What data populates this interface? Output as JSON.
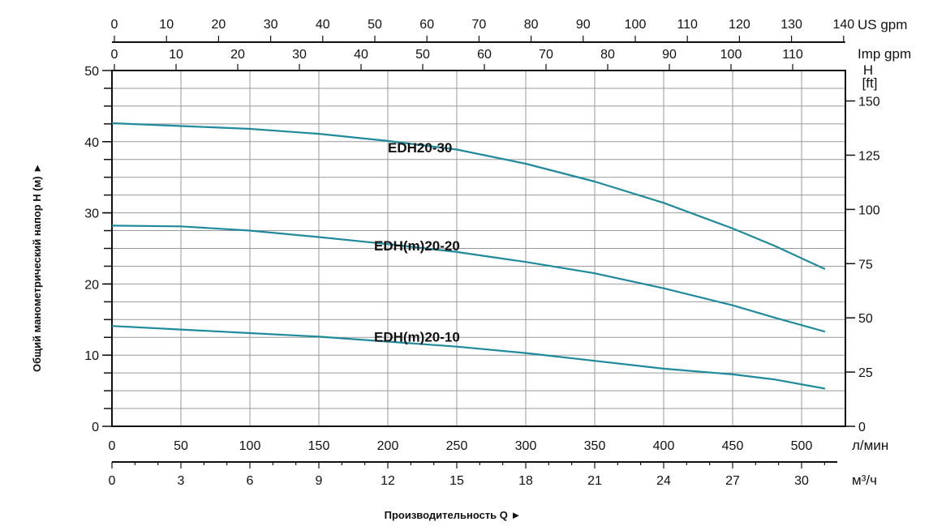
{
  "chart_data": {
    "type": "line",
    "xlabel": "Производительность Q ►",
    "ylabel": "Общий манометрический напор H (м) ►",
    "grid": true,
    "x_axis": {
      "unit": "л/мин",
      "range": [
        0,
        532
      ],
      "ticks": [
        0,
        50,
        100,
        150,
        200,
        250,
        300,
        350,
        400,
        450,
        500
      ]
    },
    "x_axis_m3h": {
      "unit": "м³/ч",
      "ticks": [
        0,
        3,
        6,
        9,
        12,
        15,
        18,
        21,
        24,
        27,
        30
      ]
    },
    "x_axis_us_gpm": {
      "unit": "US gpm",
      "ticks": [
        0,
        10,
        20,
        30,
        40,
        50,
        60,
        70,
        80,
        90,
        100,
        110,
        120,
        130,
        140
      ]
    },
    "x_axis_imp_gpm": {
      "unit": "Imp gpm",
      "ticks": [
        0,
        10,
        20,
        30,
        40,
        50,
        60,
        70,
        80,
        90,
        100,
        110
      ]
    },
    "y_axis": {
      "range": [
        0,
        50
      ],
      "ticks": [
        0,
        10,
        20,
        30,
        40,
        50
      ],
      "minor_step": 2.5
    },
    "y_axis_ft": {
      "unit_line1": "H",
      "unit_line2": "[ft]",
      "ticks": [
        0,
        25,
        50,
        75,
        100,
        125,
        150
      ]
    },
    "line_color": "#1f8a9c",
    "series": [
      {
        "name": "EDH20-30",
        "x": [
          0,
          50,
          100,
          150,
          200,
          250,
          300,
          350,
          400,
          450,
          480,
          517
        ],
        "y": [
          42.6,
          42.2,
          41.8,
          41.1,
          40.1,
          38.9,
          36.9,
          34.4,
          31.4,
          27.8,
          25.4,
          22.1
        ]
      },
      {
        "name": "EDH(m)20-20",
        "x": [
          0,
          50,
          100,
          150,
          200,
          250,
          300,
          350,
          400,
          450,
          480,
          517
        ],
        "y": [
          28.2,
          28.1,
          27.5,
          26.6,
          25.6,
          24.5,
          23.1,
          21.5,
          19.4,
          17.0,
          15.3,
          13.3
        ]
      },
      {
        "name": "EDH(m)20-10",
        "x": [
          0,
          50,
          100,
          150,
          200,
          250,
          300,
          350,
          400,
          450,
          480,
          517
        ],
        "y": [
          14.1,
          13.6,
          13.1,
          12.6,
          11.9,
          11.2,
          10.3,
          9.2,
          8.1,
          7.3,
          6.6,
          5.3
        ]
      }
    ],
    "label_positions_x": [
      200,
      190,
      190
    ]
  }
}
